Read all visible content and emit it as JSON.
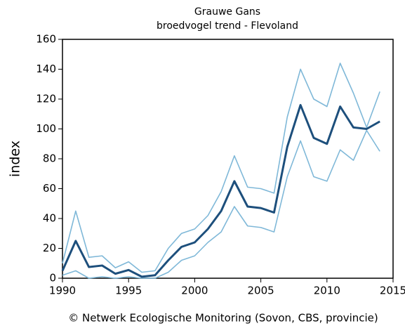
{
  "chart_data": {
    "type": "line",
    "title": "Grauwe Gans",
    "subtitle": "broedvogel trend - Flevoland",
    "y_label": "index",
    "footer": "© Netwerk Ecologische Monitoring (Sovon, CBS, provincie)",
    "x": [
      1990,
      1991,
      1992,
      1993,
      1994,
      1995,
      1996,
      1997,
      1998,
      1999,
      2000,
      2001,
      2002,
      2003,
      2004,
      2005,
      2006,
      2007,
      2008,
      2009,
      2010,
      2011,
      2012,
      2013,
      2014
    ],
    "series": [
      {
        "color": "#7fb8d8",
        "values": [
          10,
          45,
          14,
          15,
          7,
          11,
          4,
          5,
          20,
          30,
          33,
          42,
          58,
          82,
          61,
          60,
          57,
          108,
          140,
          120,
          115,
          144,
          124,
          101,
          125
        ]
      },
      {
        "color": "#7fb8d8",
        "values": [
          2,
          5,
          0,
          1,
          0,
          1,
          0,
          0,
          4,
          12,
          15,
          24,
          31,
          48,
          35,
          34,
          31,
          68,
          92,
          68,
          65,
          86,
          79,
          99,
          85
        ]
      },
      {
        "color": "#1d4f7c",
        "values": [
          5,
          25,
          7.5,
          8.5,
          3,
          5.5,
          1,
          2,
          12,
          21,
          24,
          33,
          45,
          65,
          48,
          47,
          44,
          88,
          116,
          94,
          90,
          115,
          101,
          100,
          105
        ]
      }
    ],
    "xlim": [
      1990,
      2015
    ],
    "xticks": [
      1990,
      1995,
      2000,
      2005,
      2010,
      2015
    ],
    "ylim": [
      0,
      160
    ],
    "yticks": [
      0,
      20,
      40,
      60,
      80,
      100,
      120,
      140,
      160
    ]
  }
}
